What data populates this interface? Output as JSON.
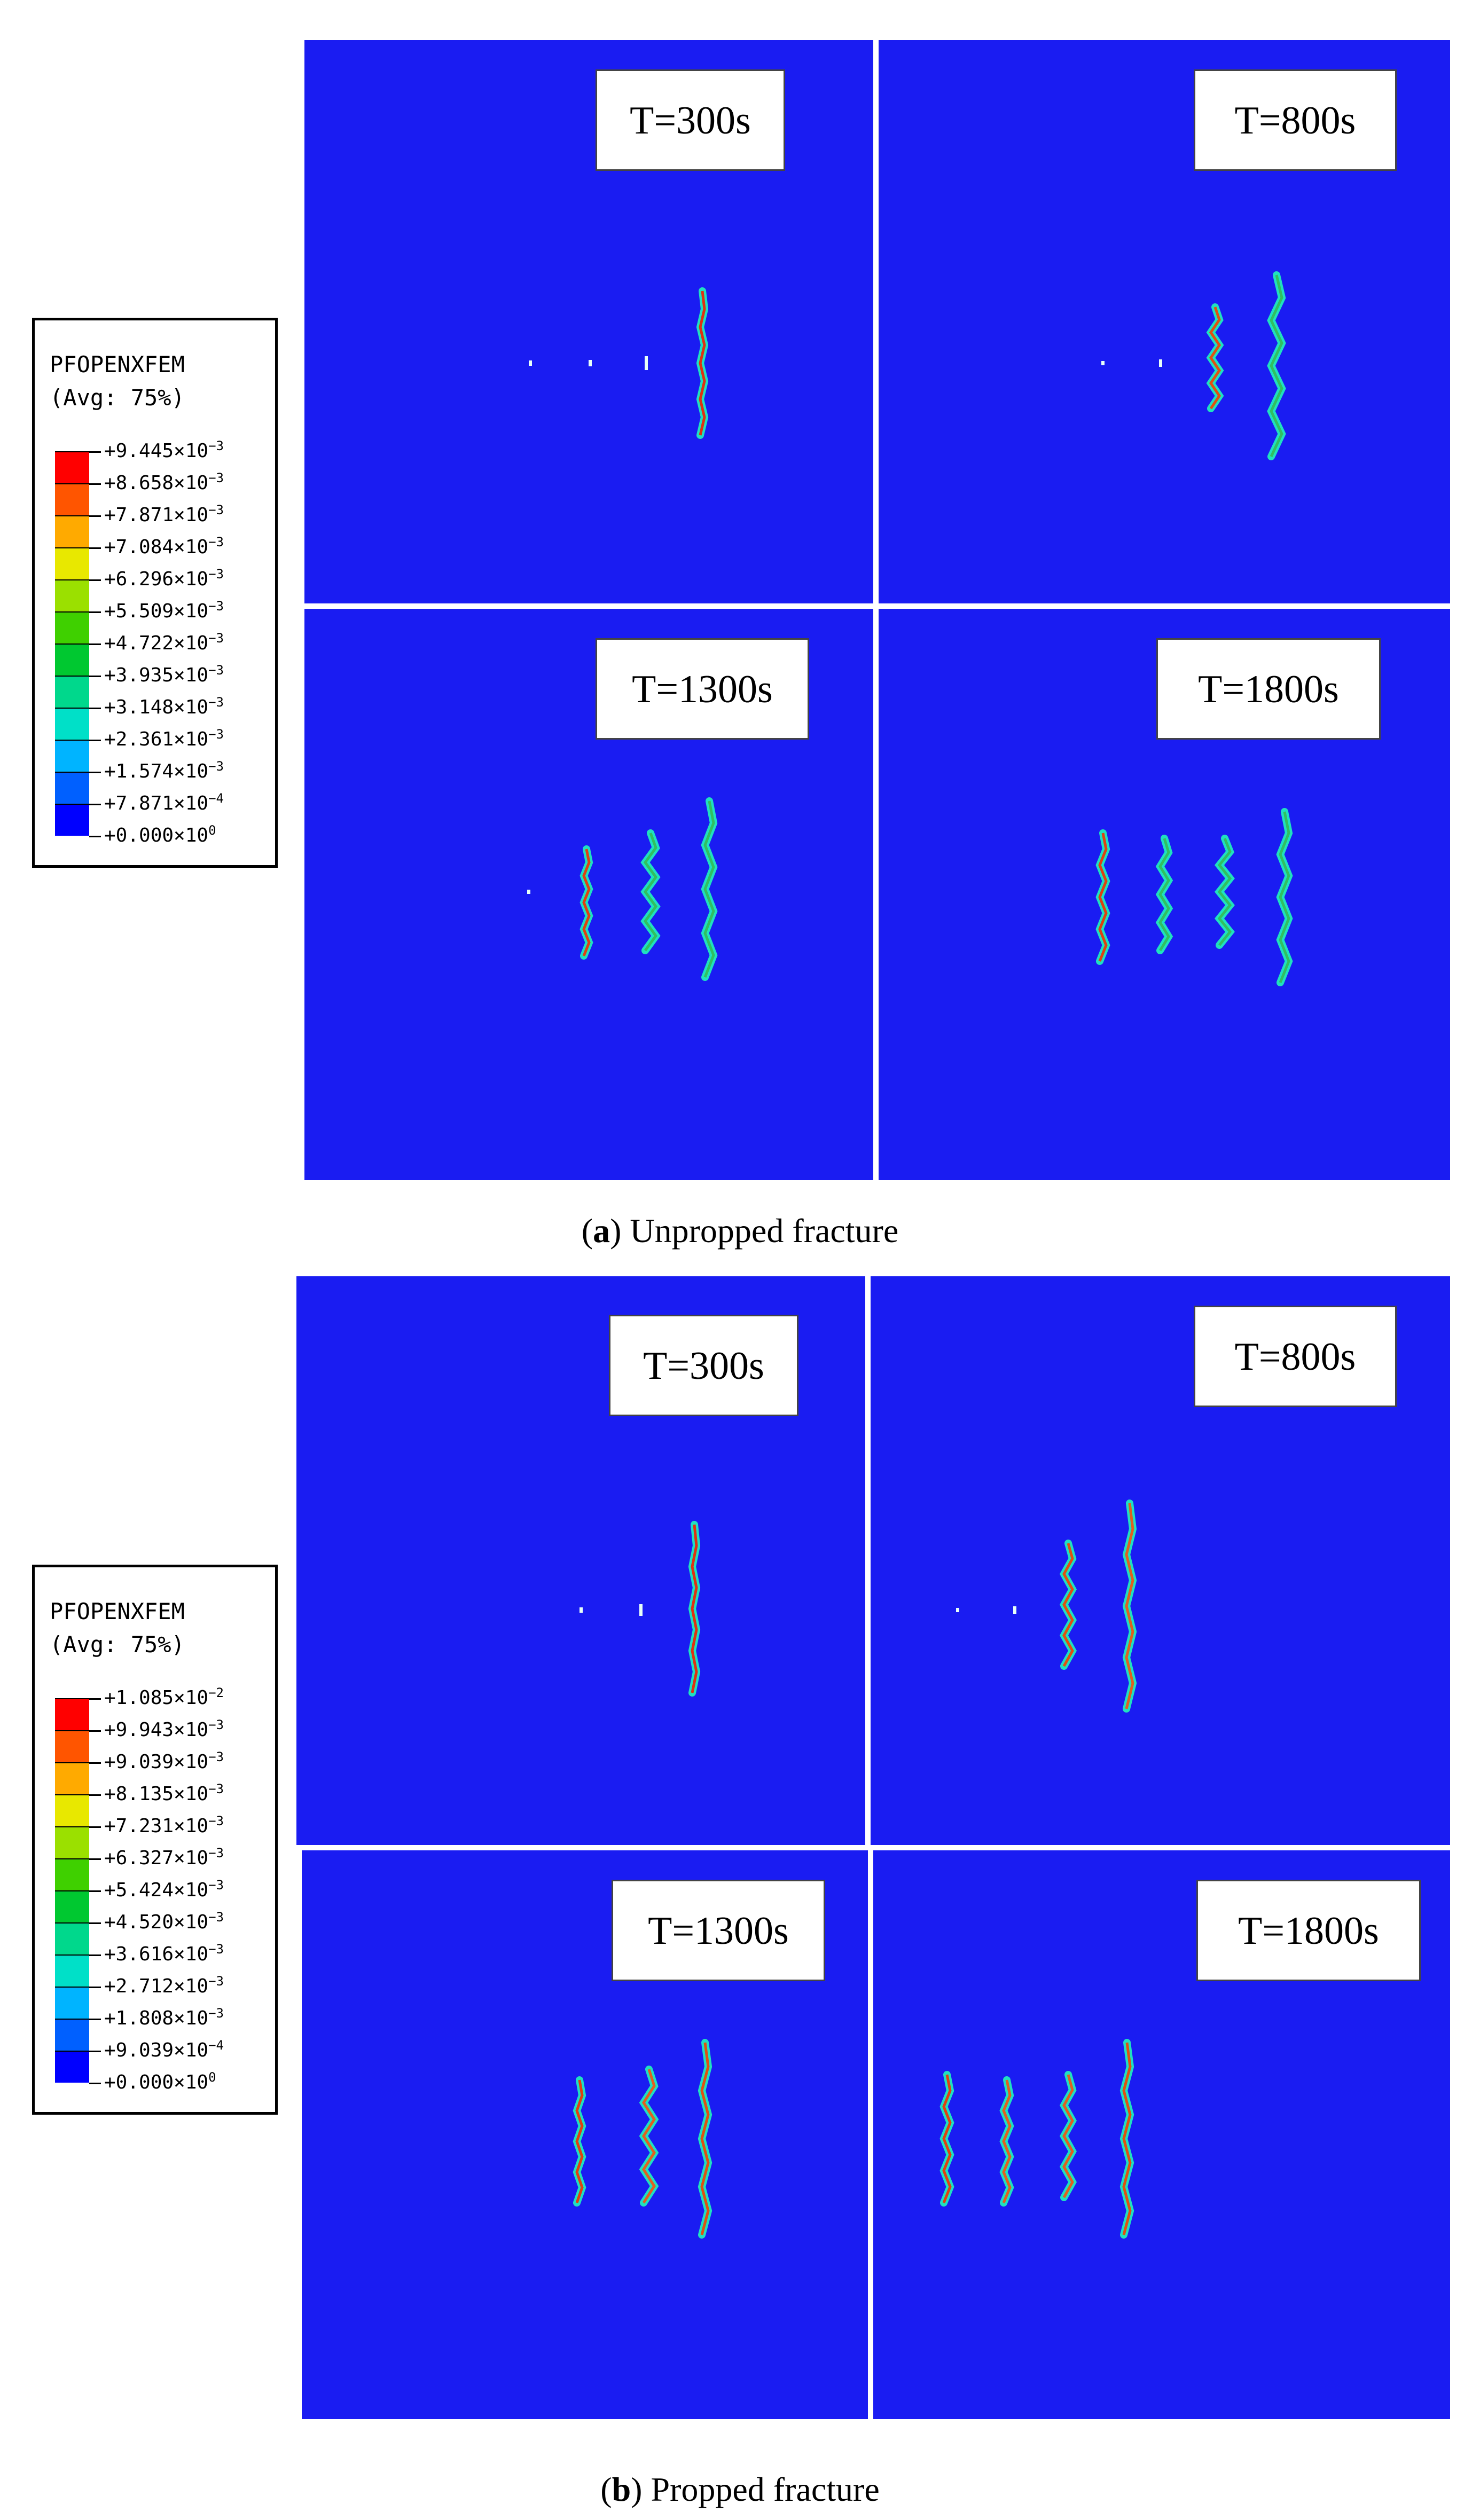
{
  "legend_title_1": "PFOPENXFEM",
  "legend_title_2": "(Avg: 75%)",
  "band_colors": [
    "#ff0000",
    "#ff5500",
    "#ffaa00",
    "#e8e800",
    "#9be000",
    "#3fd000",
    "#00c830",
    "#00d88c",
    "#00e0c8",
    "#00b4ff",
    "#0060ff",
    "#0000ff"
  ],
  "sections": [
    {
      "caption_letter": "a",
      "caption_text": "Unpropped fracture",
      "legend_levels": [
        {
          "mantissa": "+9.445×10",
          "exp": "−3"
        },
        {
          "mantissa": "+8.658×10",
          "exp": "−3"
        },
        {
          "mantissa": "+7.871×10",
          "exp": "−3"
        },
        {
          "mantissa": "+7.084×10",
          "exp": "−3"
        },
        {
          "mantissa": "+6.296×10",
          "exp": "−3"
        },
        {
          "mantissa": "+5.509×10",
          "exp": "−3"
        },
        {
          "mantissa": "+4.722×10",
          "exp": "−3"
        },
        {
          "mantissa": "+3.935×10",
          "exp": "−3"
        },
        {
          "mantissa": "+3.148×10",
          "exp": "−3"
        },
        {
          "mantissa": "+2.361×10",
          "exp": "−3"
        },
        {
          "mantissa": "+1.574×10",
          "exp": "−3"
        },
        {
          "mantissa": "+7.871×10",
          "exp": "−4"
        },
        {
          "mantissa": "+0.000×10",
          "exp": "0"
        }
      ],
      "panels": [
        {
          "time": "T=300s"
        },
        {
          "time": "T=800s"
        },
        {
          "time": "T=1300s"
        },
        {
          "time": "T=1800s"
        }
      ]
    },
    {
      "caption_letter": "b",
      "caption_text": "Propped fracture",
      "legend_levels": [
        {
          "mantissa": "+1.085×10",
          "exp": "−2"
        },
        {
          "mantissa": "+9.943×10",
          "exp": "−3"
        },
        {
          "mantissa": "+9.039×10",
          "exp": "−3"
        },
        {
          "mantissa": "+8.135×10",
          "exp": "−3"
        },
        {
          "mantissa": "+7.231×10",
          "exp": "−3"
        },
        {
          "mantissa": "+6.327×10",
          "exp": "−3"
        },
        {
          "mantissa": "+5.424×10",
          "exp": "−3"
        },
        {
          "mantissa": "+4.520×10",
          "exp": "−3"
        },
        {
          "mantissa": "+3.616×10",
          "exp": "−3"
        },
        {
          "mantissa": "+2.712×10",
          "exp": "−3"
        },
        {
          "mantissa": "+1.808×10",
          "exp": "−3"
        },
        {
          "mantissa": "+9.039×10",
          "exp": "−4"
        },
        {
          "mantissa": "+0.000×10",
          "exp": "0"
        }
      ],
      "panels": [
        {
          "time": "T=300s"
        },
        {
          "time": "T=800s"
        },
        {
          "time": "T=1300s"
        },
        {
          "time": "T=1800s"
        }
      ]
    }
  ]
}
